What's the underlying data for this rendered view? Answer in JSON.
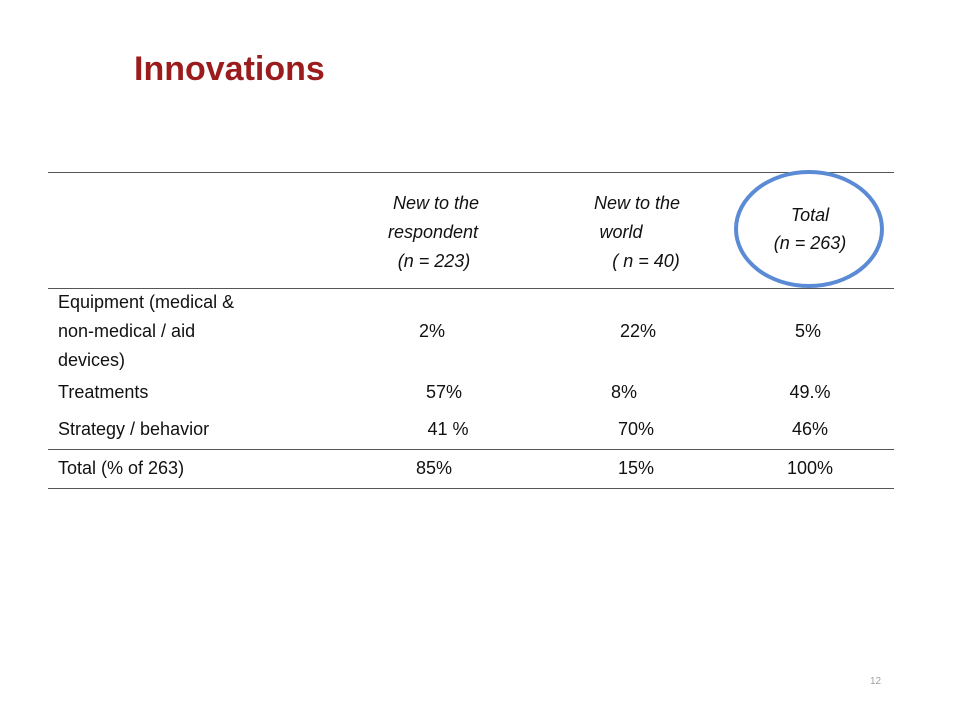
{
  "slide": {
    "title": "Innovations",
    "page_number": "12"
  },
  "table": {
    "headers": [
      {
        "lines": [
          "New to the",
          "respondent",
          "(n = 223)"
        ]
      },
      {
        "lines": [
          "New to the",
          "world",
          "( n = 40)"
        ]
      },
      {
        "lines": [
          "Total",
          "(n = 263)"
        ]
      }
    ],
    "rows": [
      {
        "label_lines": [
          "Equipment (medical &",
          "non-medical / aid",
          "devices)"
        ],
        "values": [
          "2%",
          "22%",
          "5%"
        ]
      },
      {
        "label_lines": [
          "Treatments"
        ],
        "values": [
          "57%",
          "8%",
          "49.%"
        ]
      },
      {
        "label_lines": [
          "Strategy / behavior"
        ],
        "values": [
          "41 %",
          "70%",
          "46%"
        ]
      },
      {
        "label_lines": [
          "Total (% of 263)"
        ],
        "values": [
          "85%",
          "15%",
          "100%"
        ]
      }
    ]
  },
  "highlight": {
    "ring_color": "#5b8bd5",
    "marks_column": "Total"
  },
  "colors": {
    "title": "#9b1c1c",
    "rules": "#555555",
    "page_number": "#a0a0a0"
  }
}
